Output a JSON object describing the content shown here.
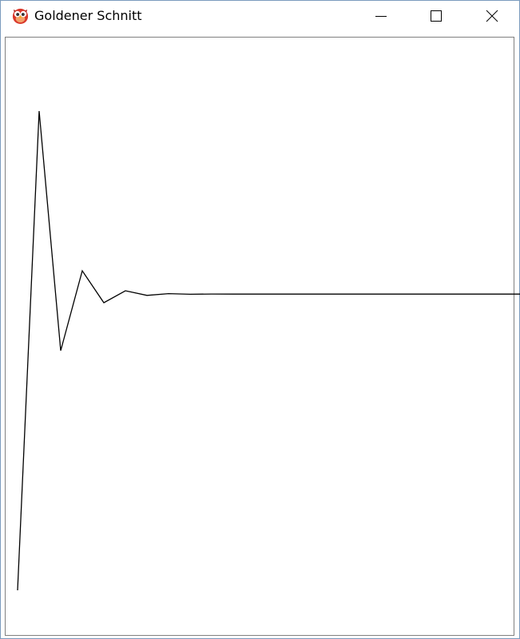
{
  "window": {
    "title": "Goldener Schnitt",
    "icon": "owl-app-icon",
    "controls": [
      "minimize-icon",
      "maximize-icon",
      "close-icon"
    ]
  },
  "chart_data": {
    "type": "line",
    "x": [
      1,
      2,
      3,
      4,
      5,
      6,
      7,
      8,
      9,
      10,
      11,
      12,
      13,
      14,
      15,
      16,
      17,
      18,
      19,
      20,
      21,
      22,
      23,
      24,
      25,
      26,
      27,
      28,
      29,
      30
    ],
    "y": [
      1.0,
      2.0,
      1.5,
      1.6667,
      1.6,
      1.625,
      1.6154,
      1.619,
      1.6176,
      1.6182,
      1.618,
      1.618,
      1.618,
      1.618,
      1.618,
      1.618,
      1.618,
      1.618,
      1.618,
      1.618,
      1.618,
      1.618,
      1.618,
      1.618,
      1.618,
      1.618,
      1.618,
      1.618,
      1.618,
      1.618
    ],
    "title": "",
    "xlabel": "",
    "ylabel": "",
    "ylim": [
      0.9,
      2.05
    ],
    "grid": false,
    "line_color": "#000000"
  }
}
